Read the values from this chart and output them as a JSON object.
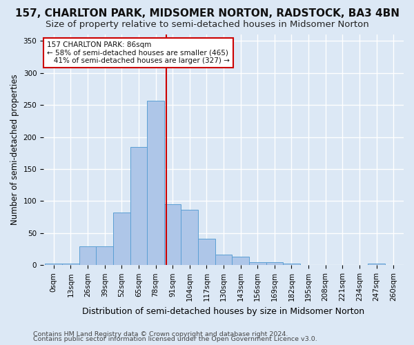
{
  "title": "157, CHARLTON PARK, MIDSOMER NORTON, RADSTOCK, BA3 4BN",
  "subtitle": "Size of property relative to semi-detached houses in Midsomer Norton",
  "xlabel": "Distribution of semi-detached houses by size in Midsomer Norton",
  "ylabel": "Number of semi-detached properties",
  "footer_line1": "Contains HM Land Registry data © Crown copyright and database right 2024.",
  "footer_line2": "Contains public sector information licensed under the Open Government Licence v3.0.",
  "bin_labels": [
    "0sqm",
    "13sqm",
    "26sqm",
    "39sqm",
    "52sqm",
    "65sqm",
    "78sqm",
    "91sqm",
    "104sqm",
    "117sqm",
    "130sqm",
    "143sqm",
    "156sqm",
    "169sqm",
    "182sqm",
    "195sqm",
    "208sqm",
    "221sqm",
    "234sqm",
    "247sqm",
    "260sqm"
  ],
  "bar_heights": [
    2,
    2,
    29,
    29,
    82,
    184,
    257,
    95,
    87,
    41,
    17,
    13,
    5,
    5,
    2,
    0,
    0,
    0,
    0,
    2,
    0
  ],
  "bar_color": "#aec6e8",
  "bar_edge_color": "#5a9fd4",
  "property_size_sqm": 86,
  "bin_step": 13,
  "vline_color": "#cc0000",
  "annotation_line1": "157 CHARLTON PARK: 86sqm",
  "annotation_line2": "← 58% of semi-detached houses are smaller (465)",
  "annotation_line3": "   41% of semi-detached houses are larger (327) →",
  "annotation_box_color": "#ffffff",
  "annotation_box_edge_color": "#cc0000",
  "ylim": [
    0,
    360
  ],
  "yticks": [
    0,
    50,
    100,
    150,
    200,
    250,
    300,
    350
  ],
  "background_color": "#dce8f5",
  "grid_color": "#ffffff",
  "title_fontsize": 11,
  "subtitle_fontsize": 9.5,
  "ylabel_fontsize": 8.5,
  "xlabel_fontsize": 9,
  "tick_fontsize": 7.5,
  "footer_fontsize": 6.8
}
